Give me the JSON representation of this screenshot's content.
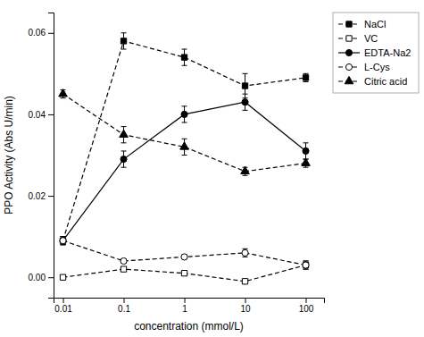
{
  "chart_data": {
    "type": "line",
    "x": [
      0.01,
      0.1,
      1,
      10,
      100
    ],
    "series": [
      {
        "name": "NaCl",
        "values": [
          0.009,
          0.058,
          0.054,
          0.047,
          0.049
        ],
        "errors": [
          0.001,
          0.002,
          0.002,
          0.003,
          0.001
        ],
        "marker": "square",
        "line_style": "dashed",
        "color": "black"
      },
      {
        "name": "VC",
        "values": [
          0.0,
          0.002,
          0.001,
          -0.001,
          0.003
        ],
        "errors": [
          0.0005,
          0.0005,
          0.0005,
          0.0005,
          0.001
        ],
        "marker": "square-open",
        "line_style": "dashed",
        "color": "black"
      },
      {
        "name": "EDTA-Na2",
        "values": [
          0.009,
          0.029,
          0.04,
          0.043,
          0.031
        ],
        "errors": [
          0.001,
          0.002,
          0.002,
          0.002,
          0.002
        ],
        "marker": "circle",
        "line_style": "solid",
        "color": "black"
      },
      {
        "name": "L-Cys",
        "values": [
          0.009,
          0.004,
          0.005,
          0.006,
          0.003
        ],
        "errors": [
          0.001,
          0.0005,
          0.0005,
          0.001,
          0.001
        ],
        "marker": "circle-open",
        "line_style": "dashed",
        "color": "black"
      },
      {
        "name": "Citric acid",
        "values": [
          0.045,
          0.035,
          0.032,
          0.026,
          0.028
        ],
        "errors": [
          0.001,
          0.002,
          0.002,
          0.001,
          0.001
        ],
        "marker": "triangle",
        "line_style": "dashed",
        "color": "black"
      }
    ],
    "x_label": "concentration (mmol/L)",
    "y_label": "PPO Activity (Abs U/min)",
    "log": "x",
    "xlim": [
      0.007,
      200
    ],
    "xticks": [
      0.01,
      0.1,
      1,
      10,
      100
    ],
    "ylim": [
      -0.005,
      0.065
    ],
    "yticks": [
      {
        "value": 0,
        "label": "0.00"
      },
      0.02,
      0.04,
      0.06
    ],
    "grid": false,
    "legend": "upper right"
  }
}
